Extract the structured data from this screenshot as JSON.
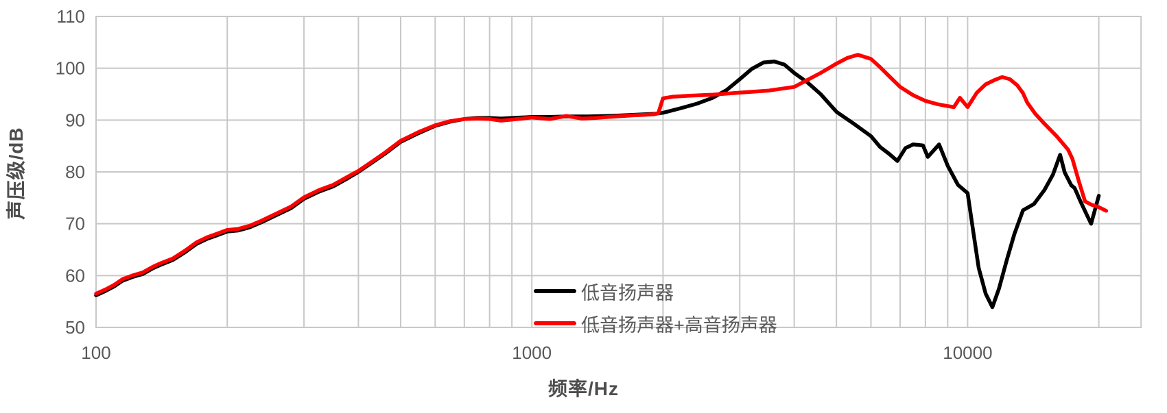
{
  "chart": {
    "x_axis_title": "频率/Hz",
    "y_axis_title": "声压级/dB"
  },
  "colors": {
    "grid": "#c8c8c8",
    "tick_text": "#595959",
    "series_black": "#000000",
    "series_red": "#ff0000",
    "background": "#ffffff"
  },
  "chart_data": {
    "type": "line",
    "title": "",
    "xlabel": "频率/Hz",
    "ylabel": "声压级/dB",
    "x_scale": "log",
    "xlim": [
      100,
      25000
    ],
    "ylim": [
      50,
      110
    ],
    "x_ticks": [
      {
        "value": 100,
        "label": "100"
      },
      {
        "value": 1000,
        "label": "1000"
      },
      {
        "value": 10000,
        "label": "10000"
      }
    ],
    "y_ticks": [
      {
        "value": 50,
        "label": "50"
      },
      {
        "value": 60,
        "label": "60"
      },
      {
        "value": 70,
        "label": "70"
      },
      {
        "value": 80,
        "label": "80"
      },
      {
        "value": 90,
        "label": "90"
      },
      {
        "value": 100,
        "label": "100"
      },
      {
        "value": 110,
        "label": "110"
      }
    ],
    "grid": true,
    "legend_position": "inside-bottom-center",
    "series": [
      {
        "name": "低音扬声器",
        "color": "#000000",
        "points": [
          [
            100,
            56.2
          ],
          [
            105,
            57.0
          ],
          [
            110,
            57.9
          ],
          [
            115,
            59.0
          ],
          [
            122,
            59.8
          ],
          [
            128,
            60.3
          ],
          [
            135,
            61.4
          ],
          [
            140,
            62.0
          ],
          [
            150,
            63.0
          ],
          [
            160,
            64.5
          ],
          [
            170,
            66.1
          ],
          [
            180,
            67.1
          ],
          [
            190,
            67.8
          ],
          [
            200,
            68.5
          ],
          [
            212,
            68.7
          ],
          [
            225,
            69.3
          ],
          [
            240,
            70.3
          ],
          [
            260,
            71.7
          ],
          [
            280,
            73.0
          ],
          [
            300,
            74.8
          ],
          [
            325,
            76.2
          ],
          [
            350,
            77.2
          ],
          [
            375,
            78.6
          ],
          [
            400,
            80.0
          ],
          [
            430,
            81.8
          ],
          [
            460,
            83.5
          ],
          [
            500,
            85.8
          ],
          [
            550,
            87.5
          ],
          [
            600,
            88.9
          ],
          [
            650,
            89.7
          ],
          [
            700,
            90.2
          ],
          [
            750,
            90.4
          ],
          [
            800,
            90.4
          ],
          [
            850,
            90.3
          ],
          [
            900,
            90.4
          ],
          [
            1000,
            90.6
          ],
          [
            1100,
            90.6
          ],
          [
            1200,
            90.7
          ],
          [
            1350,
            90.7
          ],
          [
            1500,
            90.8
          ],
          [
            1700,
            91.0
          ],
          [
            1900,
            91.2
          ],
          [
            2000,
            91.4
          ],
          [
            2200,
            92.3
          ],
          [
            2400,
            93.2
          ],
          [
            2600,
            94.3
          ],
          [
            2800,
            95.8
          ],
          [
            3000,
            97.9
          ],
          [
            3200,
            99.9
          ],
          [
            3400,
            101.1
          ],
          [
            3600,
            101.3
          ],
          [
            3800,
            100.7
          ],
          [
            4000,
            99.1
          ],
          [
            4300,
            97.2
          ],
          [
            4600,
            95.0
          ],
          [
            5000,
            91.6
          ],
          [
            5500,
            89.2
          ],
          [
            6000,
            86.9
          ],
          [
            6300,
            84.8
          ],
          [
            6600,
            83.5
          ],
          [
            6900,
            82.1
          ],
          [
            7200,
            84.6
          ],
          [
            7500,
            85.3
          ],
          [
            7900,
            85.1
          ],
          [
            8100,
            82.9
          ],
          [
            8600,
            85.3
          ],
          [
            9000,
            81.2
          ],
          [
            9500,
            77.5
          ],
          [
            10000,
            75.9
          ],
          [
            10300,
            68.5
          ],
          [
            10600,
            61.5
          ],
          [
            11000,
            56.5
          ],
          [
            11400,
            53.9
          ],
          [
            11800,
            57.5
          ],
          [
            12300,
            63.0
          ],
          [
            12800,
            68.0
          ],
          [
            13400,
            72.6
          ],
          [
            14200,
            73.8
          ],
          [
            15000,
            76.5
          ],
          [
            15700,
            79.5
          ],
          [
            16300,
            83.3
          ],
          [
            16700,
            79.9
          ],
          [
            17300,
            77.4
          ],
          [
            17600,
            76.9
          ],
          [
            18200,
            74.1
          ],
          [
            18700,
            72.0
          ],
          [
            19200,
            70.0
          ],
          [
            20000,
            75.4
          ]
        ]
      },
      {
        "name": "低音扬声器+高音扬声器",
        "color": "#ff0000",
        "points": [
          [
            100,
            56.5
          ],
          [
            105,
            57.3
          ],
          [
            110,
            58.2
          ],
          [
            115,
            59.3
          ],
          [
            122,
            60.1
          ],
          [
            128,
            60.6
          ],
          [
            135,
            61.7
          ],
          [
            140,
            62.3
          ],
          [
            150,
            63.3
          ],
          [
            160,
            64.8
          ],
          [
            170,
            66.4
          ],
          [
            180,
            67.4
          ],
          [
            190,
            68.1
          ],
          [
            200,
            68.8
          ],
          [
            212,
            69.0
          ],
          [
            225,
            69.6
          ],
          [
            240,
            70.6
          ],
          [
            260,
            72.0
          ],
          [
            280,
            73.3
          ],
          [
            300,
            75.1
          ],
          [
            325,
            76.5
          ],
          [
            350,
            77.5
          ],
          [
            375,
            78.9
          ],
          [
            400,
            80.2
          ],
          [
            430,
            82.0
          ],
          [
            460,
            83.7
          ],
          [
            500,
            86.0
          ],
          [
            550,
            87.7
          ],
          [
            600,
            89.0
          ],
          [
            650,
            89.8
          ],
          [
            700,
            90.2
          ],
          [
            750,
            90.3
          ],
          [
            800,
            90.2
          ],
          [
            850,
            89.9
          ],
          [
            900,
            90.1
          ],
          [
            1000,
            90.5
          ],
          [
            1100,
            90.2
          ],
          [
            1200,
            90.8
          ],
          [
            1300,
            90.3
          ],
          [
            1400,
            90.4
          ],
          [
            1500,
            90.6
          ],
          [
            1700,
            90.9
          ],
          [
            1900,
            91.1
          ],
          [
            1950,
            91.3
          ],
          [
            2000,
            94.2
          ],
          [
            2100,
            94.5
          ],
          [
            2300,
            94.7
          ],
          [
            2600,
            94.9
          ],
          [
            3000,
            95.3
          ],
          [
            3500,
            95.7
          ],
          [
            4000,
            96.4
          ],
          [
            4300,
            97.8
          ],
          [
            4600,
            99.1
          ],
          [
            5000,
            100.9
          ],
          [
            5300,
            102.0
          ],
          [
            5600,
            102.6
          ],
          [
            6000,
            101.8
          ],
          [
            6300,
            100.2
          ],
          [
            6600,
            98.5
          ],
          [
            7000,
            96.4
          ],
          [
            7500,
            94.8
          ],
          [
            8000,
            93.7
          ],
          [
            8500,
            93.1
          ],
          [
            9000,
            92.7
          ],
          [
            9300,
            92.5
          ],
          [
            9600,
            94.3
          ],
          [
            10000,
            92.5
          ],
          [
            10500,
            95.3
          ],
          [
            11000,
            96.9
          ],
          [
            11500,
            97.7
          ],
          [
            12000,
            98.3
          ],
          [
            12500,
            97.9
          ],
          [
            13000,
            96.7
          ],
          [
            13400,
            95.2
          ],
          [
            13700,
            93.4
          ],
          [
            14300,
            91.2
          ],
          [
            15000,
            89.3
          ],
          [
            16000,
            86.9
          ],
          [
            17000,
            84.3
          ],
          [
            17400,
            82.5
          ],
          [
            18000,
            78.2
          ],
          [
            18600,
            74.3
          ],
          [
            19200,
            73.7
          ],
          [
            20000,
            73.2
          ],
          [
            20800,
            72.5
          ]
        ]
      }
    ]
  }
}
